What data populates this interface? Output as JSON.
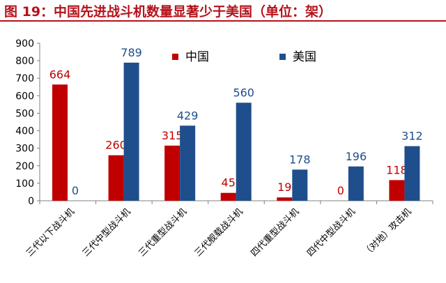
{
  "figure_title": "图 19：中国先进战斗机数量显著少于美国（单位：架）",
  "colors": {
    "china": "#c00000",
    "usa": "#1f4e8c",
    "title": "#b5121b"
  },
  "chart_data": {
    "type": "bar",
    "title": "",
    "xlabel": "",
    "ylabel": "",
    "ylim": [
      0,
      900
    ],
    "yticks": [
      0,
      100,
      200,
      300,
      400,
      500,
      600,
      700,
      800,
      900
    ],
    "grid": false,
    "legend_position": "top-center",
    "categories": [
      "三代以下战斗机",
      "三代中型战斗机",
      "三代重型战斗机",
      "三代舰载战斗机",
      "四代重型战斗机",
      "四代中型战斗机",
      "（对地）攻击机"
    ],
    "series": [
      {
        "name": "中国",
        "values": [
          664,
          260,
          315,
          45,
          19,
          0,
          118
        ]
      },
      {
        "name": "美国",
        "values": [
          0,
          789,
          429,
          560,
          178,
          196,
          312
        ]
      }
    ]
  }
}
